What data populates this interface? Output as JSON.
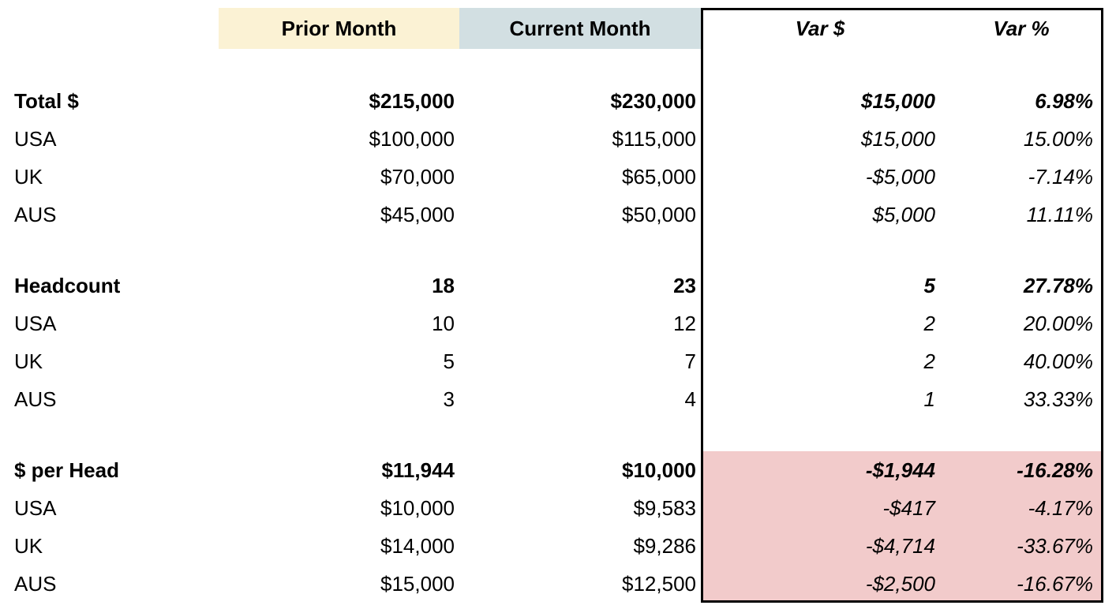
{
  "colors": {
    "prior_header_bg": "#FBF2D4",
    "current_header_bg": "#D2DFE2",
    "negative_highlight_bg": "#F2CBCB",
    "box_border": "#000000",
    "text": "#000000",
    "page_bg": "#FFFFFF"
  },
  "header": {
    "prior_label": "Prior Month",
    "current_label": "Current Month",
    "var_dollar_label": "Var $",
    "var_pct_label": "Var %"
  },
  "sections": [
    {
      "name": "total-dollars",
      "rows": [
        {
          "label": "Total $",
          "prior": "$215,000",
          "current": "$230,000",
          "var_dollar": "$15,000",
          "var_pct": "6.98%"
        },
        {
          "label": "USA",
          "prior": "$100,000",
          "current": "$115,000",
          "var_dollar": "$15,000",
          "var_pct": "15.00%"
        },
        {
          "label": "UK",
          "prior": "$70,000",
          "current": "$65,000",
          "var_dollar": "-$5,000",
          "var_pct": "-7.14%"
        },
        {
          "label": "AUS",
          "prior": "$45,000",
          "current": "$50,000",
          "var_dollar": "$5,000",
          "var_pct": "11.11%"
        }
      ]
    },
    {
      "name": "headcount",
      "rows": [
        {
          "label": "Headcount",
          "prior": "18",
          "current": "23",
          "var_dollar": "5",
          "var_pct": "27.78%"
        },
        {
          "label": "USA",
          "prior": "10",
          "current": "12",
          "var_dollar": "2",
          "var_pct": "20.00%"
        },
        {
          "label": "UK",
          "prior": "5",
          "current": "7",
          "var_dollar": "2",
          "var_pct": "40.00%"
        },
        {
          "label": "AUS",
          "prior": "3",
          "current": "4",
          "var_dollar": "1",
          "var_pct": "33.33%"
        }
      ]
    },
    {
      "name": "dollars-per-head",
      "rows": [
        {
          "label": "$ per Head",
          "prior": "$11,944",
          "current": "$10,000",
          "var_dollar": "-$1,944",
          "var_pct": "-16.28%"
        },
        {
          "label": "USA",
          "prior": "$10,000",
          "current": "$9,583",
          "var_dollar": "-$417",
          "var_pct": "-4.17%"
        },
        {
          "label": "UK",
          "prior": "$14,000",
          "current": "$9,286",
          "var_dollar": "-$4,714",
          "var_pct": "-33.67%"
        },
        {
          "label": "AUS",
          "prior": "$15,000",
          "current": "$12,500",
          "var_dollar": "-$2,500",
          "var_pct": "-16.67%"
        }
      ]
    }
  ],
  "chart_data": {
    "type": "table",
    "columns": [
      "",
      "Prior Month",
      "Current Month",
      "Var $",
      "Var %"
    ],
    "rows": [
      [
        "Total $",
        "$215,000",
        "$230,000",
        "$15,000",
        "6.98%"
      ],
      [
        "USA",
        "$100,000",
        "$115,000",
        "$15,000",
        "15.00%"
      ],
      [
        "UK",
        "$70,000",
        "$65,000",
        "-$5,000",
        "-7.14%"
      ],
      [
        "AUS",
        "$45,000",
        "$50,000",
        "$5,000",
        "11.11%"
      ],
      [
        "Headcount",
        "18",
        "23",
        "5",
        "27.78%"
      ],
      [
        "USA",
        "10",
        "12",
        "2",
        "20.00%"
      ],
      [
        "UK",
        "5",
        "7",
        "2",
        "40.00%"
      ],
      [
        "AUS",
        "3",
        "4",
        "1",
        "33.33%"
      ],
      [
        "$ per Head",
        "$11,944",
        "$10,000",
        "-$1,944",
        "-16.28%"
      ],
      [
        "USA",
        "$10,000",
        "$9,583",
        "-$417",
        "-4.17%"
      ],
      [
        "UK",
        "$14,000",
        "$9,286",
        "-$4,714",
        "-33.67%"
      ],
      [
        "AUS",
        "$15,000",
        "$12,500",
        "-$2,500",
        "-16.67%"
      ]
    ],
    "notes": {
      "highlight": "Var $ and Var % cells of the $ per Head section have a pink negative-variance highlight",
      "bordered_region": "Var $ and Var % columns are enclosed in a black box border"
    }
  }
}
